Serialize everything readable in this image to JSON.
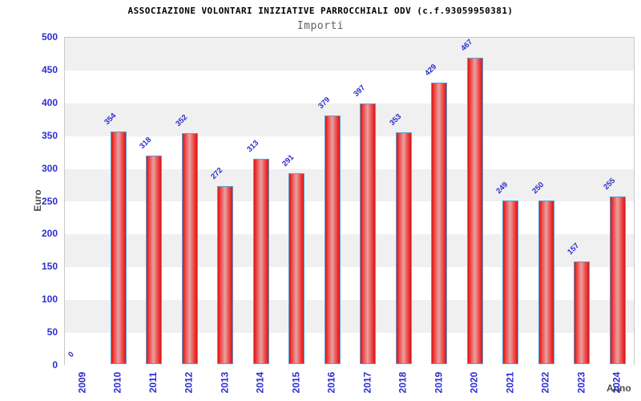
{
  "header": {
    "title": "ASSOCIAZIONE VOLONTARI INIZIATIVE PARROCCHIALI ODV (c.f.93059950381)",
    "subtitle": "Importi"
  },
  "colors": {
    "title": "#000000",
    "subtitle": "#606060",
    "axis_text_blue": "#2d2dd2",
    "value_label_blue": "#2b2bcc",
    "axis_title_gray": "#4d4d4d",
    "bar_edge_red": "#d81616",
    "bar_body_red": "#f04545",
    "bar_highlight": "#e6a2a2",
    "bar_border_blue": "#5a9fd4",
    "band_gray": "#f0f0f0",
    "band_white": "#ffffff",
    "plot_border": "#c9c9c9"
  },
  "chart_data": {
    "type": "bar",
    "title": "ASSOCIAZIONE VOLONTARI INIZIATIVE PARROCCHIALI ODV (c.f.93059950381)",
    "subtitle": "Importi",
    "categories": [
      "2009",
      "2010",
      "2011",
      "2012",
      "2013",
      "2014",
      "2015",
      "2016",
      "2017",
      "2018",
      "2019",
      "2020",
      "2021",
      "2022",
      "2023",
      "2024"
    ],
    "values": [
      0,
      354,
      318,
      352,
      272,
      313,
      291,
      379,
      397,
      353,
      429,
      467,
      249,
      250,
      157,
      255
    ],
    "xlabel": "Anno",
    "ylabel": "Euro",
    "ylim": [
      0,
      500
    ],
    "yticks": [
      500,
      450,
      400,
      350,
      300,
      250,
      200,
      150,
      100,
      50,
      0
    ],
    "grid": "alternating horizontal bands every 50, gray band at top",
    "legend": "none",
    "bar_value_labels": "shown above bars, rotated 45deg, blue",
    "x_tick_rotation": "vertical",
    "value_label_rotation": "diagonal"
  }
}
